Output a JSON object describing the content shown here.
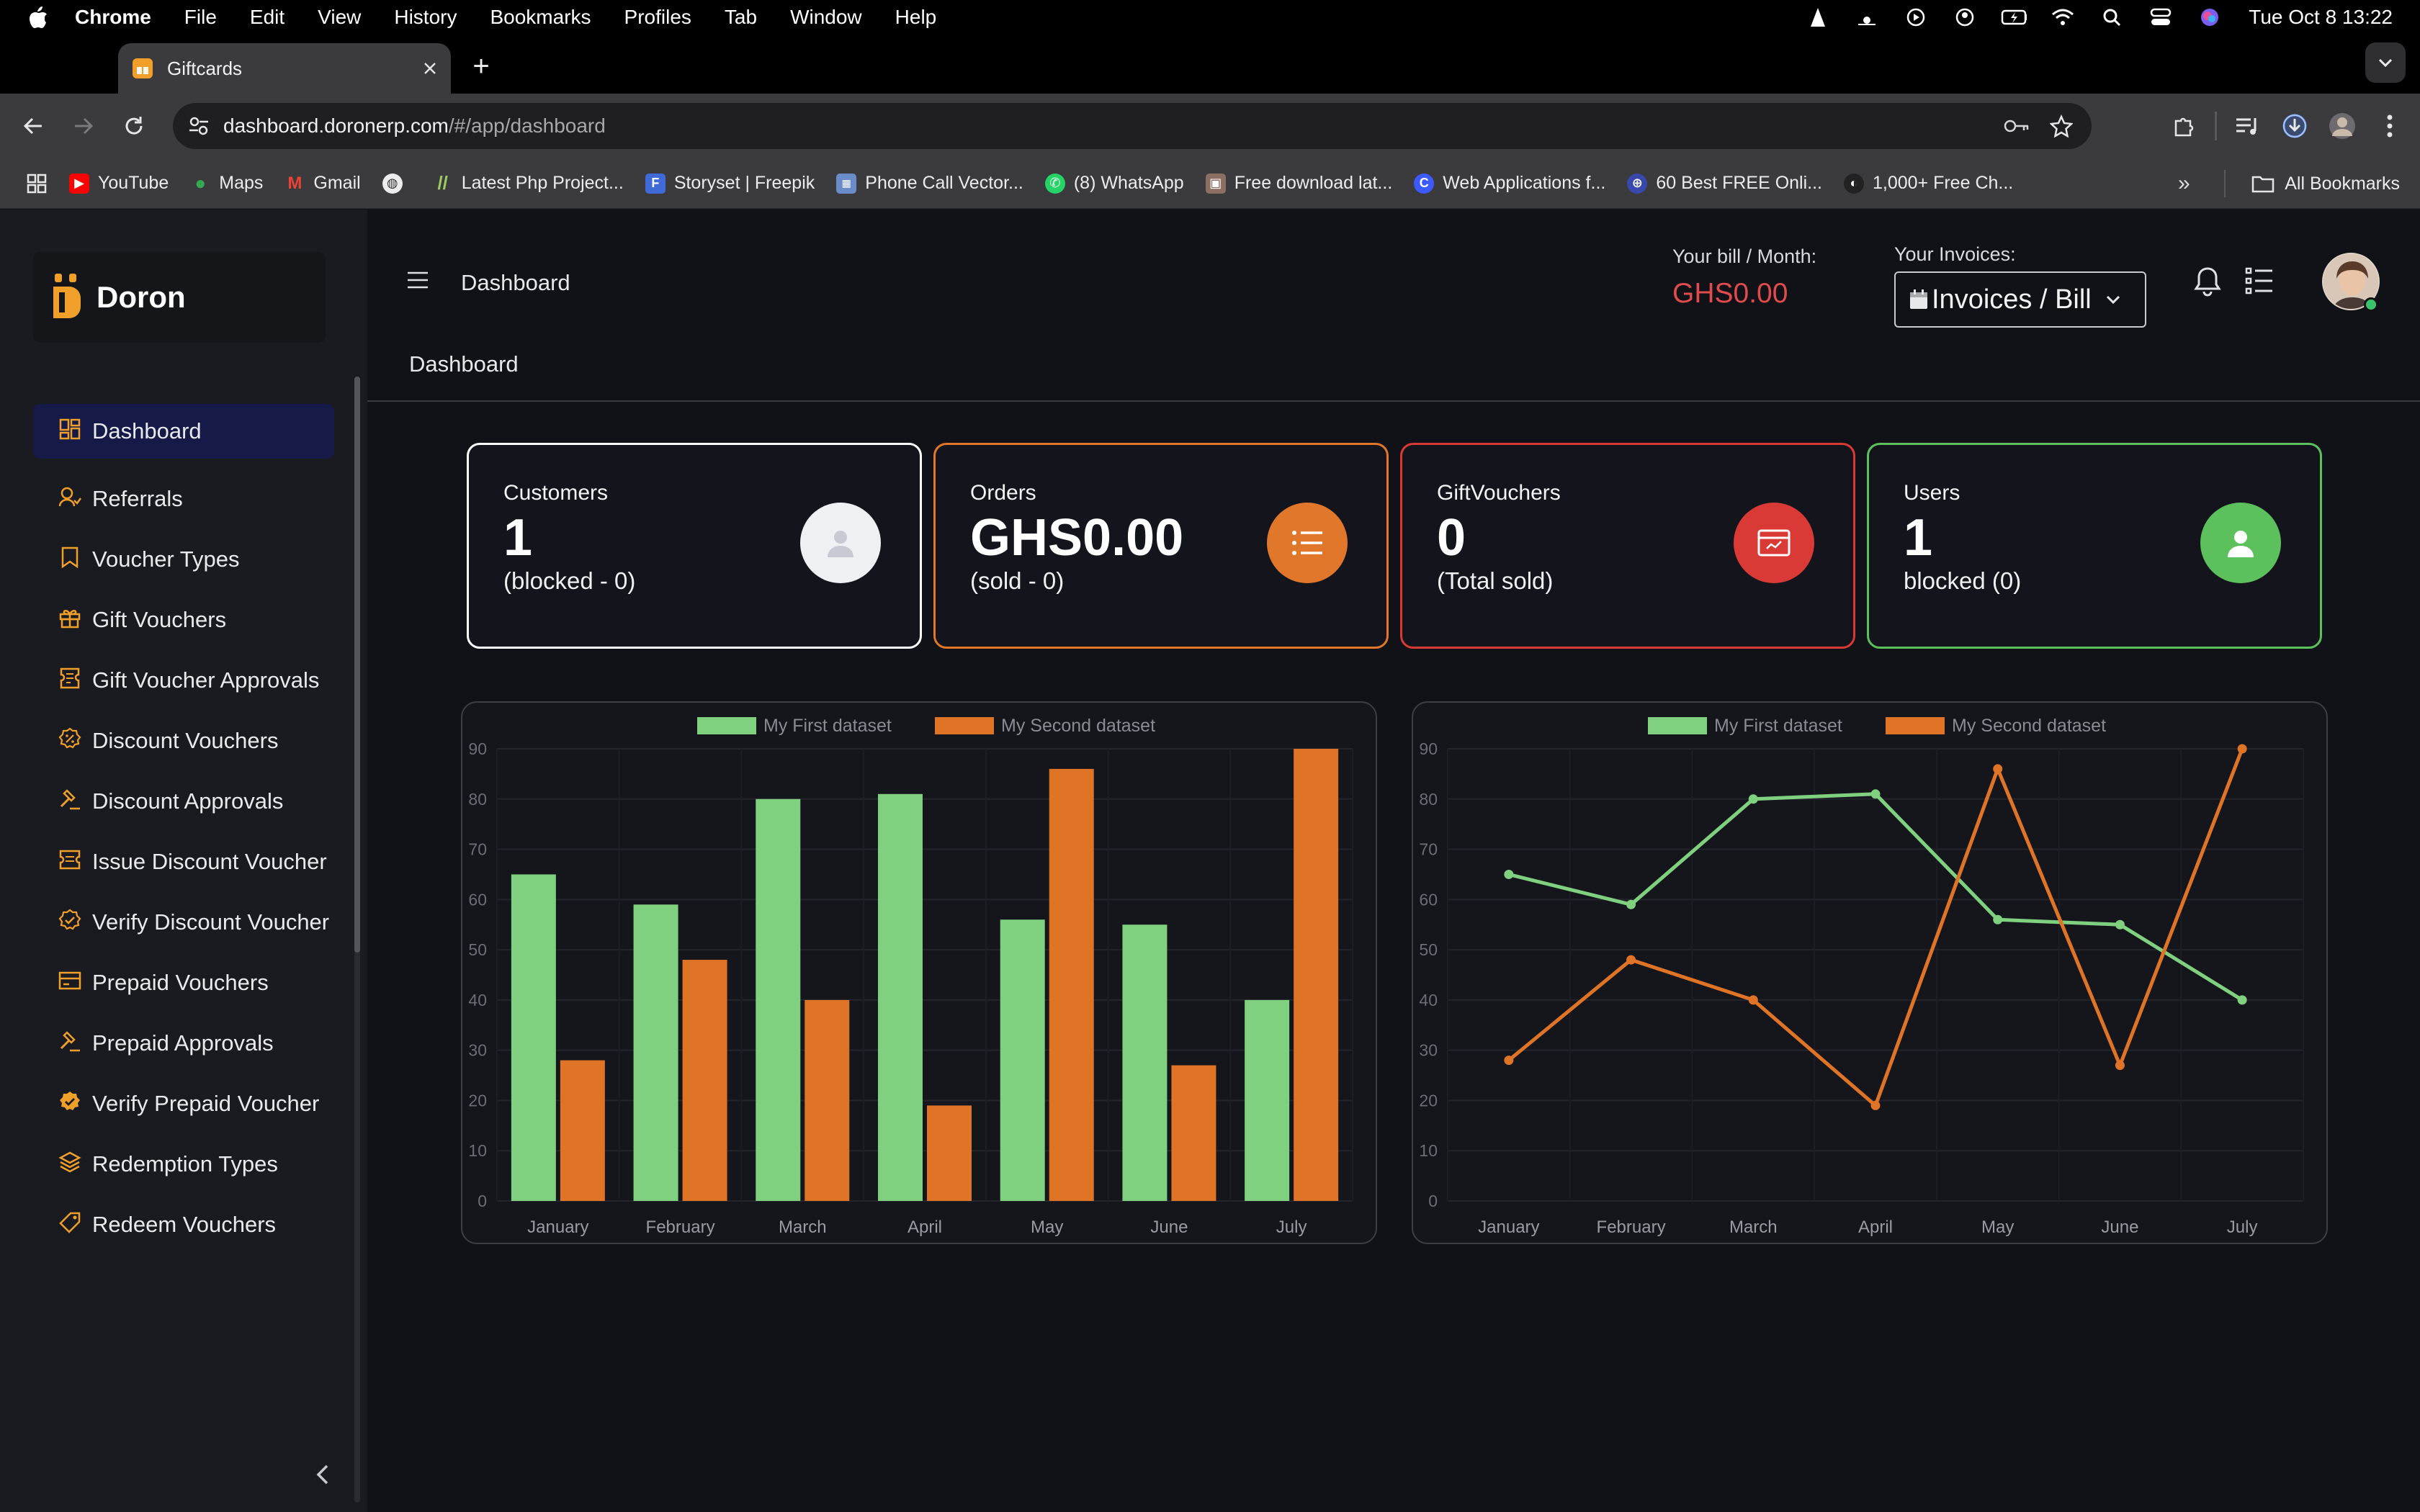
{
  "menubar": {
    "app": "Chrome",
    "items": [
      "File",
      "Edit",
      "View",
      "History",
      "Bookmarks",
      "Profiles",
      "Tab",
      "Window",
      "Help"
    ],
    "clock": "Tue Oct 8  13:22"
  },
  "browser": {
    "tab_title": "Giftcards",
    "url_host": "dashboard.doronerp.com",
    "url_path": "/#/app/dashboard",
    "bookmarks": [
      {
        "label": "YouTube",
        "color": "#ff0000",
        "glyph": "▶"
      },
      {
        "label": "Maps",
        "color": "#34a853",
        "glyph": "●"
      },
      {
        "label": "Gmail",
        "color": "#ea4335",
        "glyph": "M"
      },
      {
        "label": "",
        "color": "#5f6368",
        "glyph": "◍"
      },
      {
        "label": "Latest Php Project...",
        "color": "#7cb342",
        "glyph": "/"
      },
      {
        "label": "Storyset | Freepik",
        "color": "#3f6ad8",
        "glyph": "F"
      },
      {
        "label": "Phone Call Vector...",
        "color": "#6a8cc8",
        "glyph": "▦"
      },
      {
        "label": "(8) WhatsApp",
        "color": "#25d366",
        "glyph": "✆"
      },
      {
        "label": "Free download lat...",
        "color": "#8d6e63",
        "glyph": "▣"
      },
      {
        "label": "Web Applications f...",
        "color": "#3d5afe",
        "glyph": "C"
      },
      {
        "label": "60 Best FREE Onli...",
        "color": "#3949ab",
        "glyph": "⊕"
      },
      {
        "label": "1,000+ Free Ch...",
        "color": "#222222",
        "glyph": "◐"
      }
    ],
    "all_bookmarks": "All Bookmarks"
  },
  "sidebar": {
    "brand": "Doron",
    "items": [
      {
        "label": "Dashboard",
        "icon": "dashboard-icon",
        "active": true
      },
      {
        "label": "Referrals",
        "icon": "referrals-icon"
      },
      {
        "label": "Voucher Types",
        "icon": "bookmark-icon"
      },
      {
        "label": "Gift Vouchers",
        "icon": "gift-icon"
      },
      {
        "label": "Gift Voucher Approvals",
        "icon": "ticket-icon"
      },
      {
        "label": "Discount Vouchers",
        "icon": "discount-icon"
      },
      {
        "label": "Discount Approvals",
        "icon": "gavel-icon"
      },
      {
        "label": "Issue Discount Voucher",
        "icon": "issue-ticket-icon"
      },
      {
        "label": "Verify Discount Voucher",
        "icon": "verify-badge-icon"
      },
      {
        "label": "Prepaid Vouchers",
        "icon": "card-icon"
      },
      {
        "label": "Prepaid Approvals",
        "icon": "gavel-icon"
      },
      {
        "label": "Verify Prepaid Voucher",
        "icon": "verified-filled-icon"
      },
      {
        "label": "Redemption Types",
        "icon": "layers-icon"
      },
      {
        "label": "Redeem Vouchers",
        "icon": "tag-icon"
      }
    ]
  },
  "header": {
    "title": "Dashboard",
    "bill_label": "Your bill / Month:",
    "bill_amount": "GHS0.00",
    "invoices_label": "Your Invoices:",
    "invoices_select": "Invoices / Bill",
    "breadcrumb": "Dashboard"
  },
  "cards": [
    {
      "title": "Customers",
      "value": "1",
      "sub": "(blocked - 0)",
      "border": "#ffffff",
      "icon_bg": "#eef0f4",
      "icon": "user-icon"
    },
    {
      "title": "Orders",
      "value": "GHS0.00",
      "sub": "(sold - 0)",
      "border": "#e0772b",
      "icon_bg": "#e0772b",
      "icon": "list-icon"
    },
    {
      "title": "GiftVouchers",
      "value": "0",
      "sub": "(Total sold)",
      "border": "#d93a35",
      "icon_bg": "#d93a35",
      "icon": "voucher-icon"
    },
    {
      "title": "Users",
      "value": "1",
      "sub": "blocked (0)",
      "border": "#5cc05c",
      "icon_bg": "#5cc05c",
      "icon": "user-icon"
    }
  ],
  "chart_data": [
    {
      "type": "bar",
      "categories": [
        "January",
        "February",
        "March",
        "April",
        "May",
        "June",
        "July"
      ],
      "series": [
        {
          "name": "My First dataset",
          "color": "#7fd07f",
          "values": [
            65,
            59,
            80,
            81,
            56,
            55,
            40
          ]
        },
        {
          "name": "My Second dataset",
          "color": "#e07426",
          "values": [
            28,
            48,
            40,
            19,
            86,
            27,
            90
          ]
        }
      ],
      "ylim": [
        0,
        90
      ],
      "yticks": [
        0,
        10,
        20,
        30,
        40,
        50,
        60,
        70,
        80,
        90
      ],
      "legend": "top",
      "grid": true
    },
    {
      "type": "line",
      "categories": [
        "January",
        "February",
        "March",
        "April",
        "May",
        "June",
        "July"
      ],
      "series": [
        {
          "name": "My First dataset",
          "color": "#7fd07f",
          "values": [
            65,
            59,
            80,
            81,
            56,
            55,
            40
          ]
        },
        {
          "name": "My Second dataset",
          "color": "#e07426",
          "values": [
            28,
            48,
            40,
            19,
            86,
            27,
            90
          ]
        }
      ],
      "ylim": [
        0,
        90
      ],
      "yticks": [
        0,
        10,
        20,
        30,
        40,
        50,
        60,
        70,
        80,
        90
      ],
      "legend": "top",
      "grid": true
    }
  ]
}
